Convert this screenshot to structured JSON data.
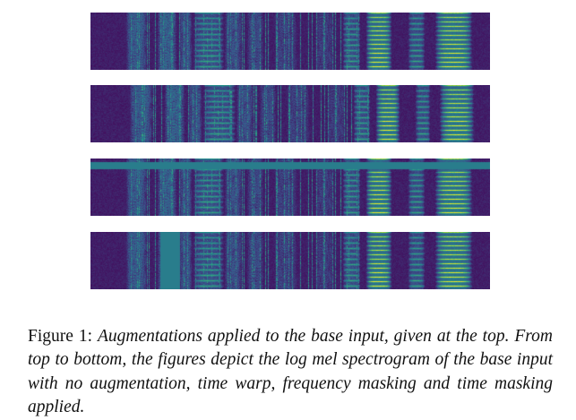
{
  "figure": {
    "panels": [
      {
        "augmentation": "none"
      },
      {
        "augmentation": "time warp"
      },
      {
        "augmentation": "frequency masking"
      },
      {
        "augmentation": "time masking"
      }
    ],
    "colormap": [
      "#440154",
      "#3b528b",
      "#21918c",
      "#5ec962",
      "#fde725"
    ]
  },
  "caption": {
    "label": "Figure 1:",
    "text": "Augmentations applied to the base input, given at the top. From top to bottom, the figures depict the log mel spectro­gram of the base input with no augmentation, time warp, fre­quency masking and time masking applied."
  }
}
